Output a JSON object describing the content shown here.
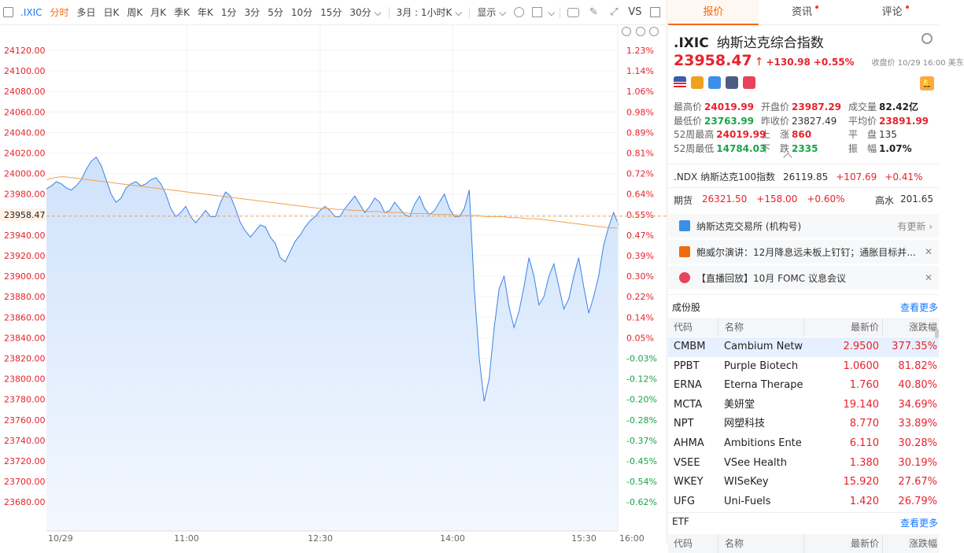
{
  "toolbar": {
    "symbol": ".IXIC",
    "periods": [
      "分时",
      "多日",
      "日K",
      "周K",
      "月K",
      "季K",
      "年K",
      "1分",
      "3分",
      "5分",
      "10分",
      "15分"
    ],
    "active_period": "分时",
    "dropdown_30": "30分",
    "dropdown_range": "3月 : 1小时K",
    "display": "显示",
    "vs": "VS"
  },
  "chart_data": {
    "type": "line",
    "x_ticks": [
      "10/29",
      "11:00",
      "12:30",
      "14:00",
      "15:30",
      "16:00"
    ],
    "price_ticks": [
      "24120.00",
      "24100.00",
      "24080.00",
      "24060.00",
      "24040.00",
      "24020.00",
      "24000.00",
      "23980.00",
      "23958.47",
      "23940.00",
      "23920.00",
      "23900.00",
      "23880.00",
      "23860.00",
      "23840.00",
      "23820.00",
      "23800.00",
      "23780.00",
      "23760.00",
      "23740.00",
      "23720.00",
      "23700.00",
      "23680.00"
    ],
    "pct_ticks": [
      "1.23%",
      "1.14%",
      "1.06%",
      "0.98%",
      "0.89%",
      "0.81%",
      "0.72%",
      "0.64%",
      "0.55%",
      "0.47%",
      "0.39%",
      "0.30%",
      "0.22%",
      "0.14%",
      "0.05%",
      "-0.03%",
      "-0.12%",
      "-0.20%",
      "-0.28%",
      "-0.37%",
      "-0.45%",
      "-0.54%",
      "-0.62%"
    ],
    "ylim": [
      23669,
      24130
    ],
    "current_price": 23958.47,
    "series": [
      {
        "values": [
          23985,
          23988,
          23992,
          23990,
          23986,
          23984,
          23988,
          23994,
          24004,
          24012,
          24016,
          24008,
          23994,
          23980,
          23972,
          23976,
          23986,
          23990,
          23992,
          23988,
          23990,
          23994,
          23996,
          23990,
          23980,
          23966,
          23958,
          23962,
          23968,
          23958,
          23952,
          23958,
          23964,
          23958,
          23958,
          23972,
          23982,
          23978,
          23966,
          23952,
          23944,
          23938,
          23944,
          23950,
          23948,
          23938,
          23932,
          23918,
          23914,
          23924,
          23934,
          23940,
          23948,
          23954,
          23958,
          23964,
          23968,
          23964,
          23958,
          23958,
          23966,
          23972,
          23978,
          23970,
          23962,
          23968,
          23976,
          23972,
          23962,
          23964,
          23972,
          23966,
          23960,
          23958,
          23970,
          23978,
          23966,
          23960,
          23964,
          23972,
          23980,
          23966,
          23958,
          23958,
          23966,
          23984,
          23888,
          23820,
          23778,
          23800,
          23850,
          23888,
          23900,
          23870,
          23850,
          23866,
          23890,
          23918,
          23900,
          23872,
          23880,
          23900,
          23912,
          23890,
          23868,
          23878,
          23900,
          23918,
          23890,
          23864,
          23880,
          23900,
          23930,
          23948,
          23962,
          23950
        ]
      },
      {
        "values": [
          23994,
          23996,
          23997,
          23996,
          23995,
          23994,
          23993,
          23992,
          23991,
          23990,
          23989,
          23988,
          23987,
          23986,
          23985,
          23984,
          23983,
          23982,
          23981,
          23980,
          23979,
          23978,
          23977,
          23976,
          23975,
          23974,
          23973,
          23972,
          23971,
          23970,
          23969,
          23968,
          23967,
          23966,
          23966,
          23965,
          23965,
          23964,
          23964,
          23963,
          23963,
          23962,
          23962,
          23962,
          23961,
          23961,
          23961,
          23960,
          23960,
          23960,
          23959,
          23959,
          23959,
          23958,
          23958,
          23958,
          23957,
          23957,
          23956,
          23956,
          23955,
          23954,
          23953,
          23952,
          23951,
          23950,
          23949,
          23948,
          23947,
          23947
        ]
      }
    ]
  },
  "right": {
    "tabs": [
      "报价",
      "资讯",
      "评论"
    ],
    "header": {
      "symbol": ".IXIC",
      "name": "纳斯达克综合指数"
    },
    "price": "23958.47",
    "arrow": "↑",
    "change": "+130.98",
    "change_pct": "+0.55%",
    "close_time": "收盘价 10/29 16:00 美东",
    "stats": [
      [
        [
          "最高价",
          "24019.99",
          "red"
        ],
        [
          "开盘价",
          "23987.29",
          "red"
        ],
        [
          "成交量",
          "82.42亿",
          "dark"
        ]
      ],
      [
        [
          "最低价",
          "23763.99",
          "green"
        ],
        [
          "昨收价",
          "23827.49",
          "plain"
        ],
        [
          "平均价",
          "23891.99",
          "red"
        ]
      ],
      [
        [
          "52周最高",
          "24019.99",
          "red"
        ],
        [
          "上　涨",
          "860",
          "red"
        ],
        [
          "平　盘",
          "135",
          "plain"
        ]
      ],
      [
        [
          "52周最低",
          "14784.03",
          "green"
        ],
        [
          "下　跌",
          "2335",
          "green"
        ],
        [
          "振　幅",
          "1.07%",
          "dark"
        ]
      ]
    ],
    "ndx": {
      "symbol": ".NDX 纳斯达克100指数",
      "price": "26119.85",
      "chg": "+107.69",
      "pct": "+0.41%"
    },
    "futures": {
      "label": "期货",
      "price": "26321.50",
      "chg": "+158.00",
      "pct": "+0.60%",
      "hs_label": "高水",
      "hs_value": "201.65"
    },
    "news": [
      {
        "text": "纳斯达克交易所 (机构号)",
        "right": "有更新 ›"
      },
      {
        "text": "鲍威尔演讲：12月降息远未板上钉钉；通胀目标并...",
        "right": "✕"
      },
      {
        "text": "【直播回放】10月 FOMC 议息会议",
        "right": "✕"
      }
    ],
    "constituents": {
      "title": "成份股",
      "more": "查看更多",
      "headers": [
        "代码",
        "名称",
        "最新价",
        "涨跌幅"
      ],
      "rows": [
        [
          "CMBM",
          "Cambium Netw",
          "2.9500",
          "377.35%"
        ],
        [
          "PPBT",
          "Purple Biotech",
          "1.0600",
          "81.82%"
        ],
        [
          "ERNA",
          "Eterna Therape",
          "1.760",
          "40.80%"
        ],
        [
          "MCTA",
          "美妍堂",
          "19.140",
          "34.69%"
        ],
        [
          "NPT",
          "网塑科技",
          "8.770",
          "33.89%"
        ],
        [
          "AHMA",
          "Ambitions Ente",
          "6.110",
          "30.28%"
        ],
        [
          "VSEE",
          "VSee Health",
          "1.380",
          "30.19%"
        ],
        [
          "WKEY",
          "WISeKey",
          "15.920",
          "27.67%"
        ],
        [
          "UFG",
          "Uni-Fuels",
          "1.420",
          "26.79%"
        ]
      ]
    },
    "etf": {
      "title": "ETF",
      "more": "查看更多",
      "headers": [
        "代码",
        "名称",
        "最新价",
        "涨跌幅"
      ]
    }
  }
}
